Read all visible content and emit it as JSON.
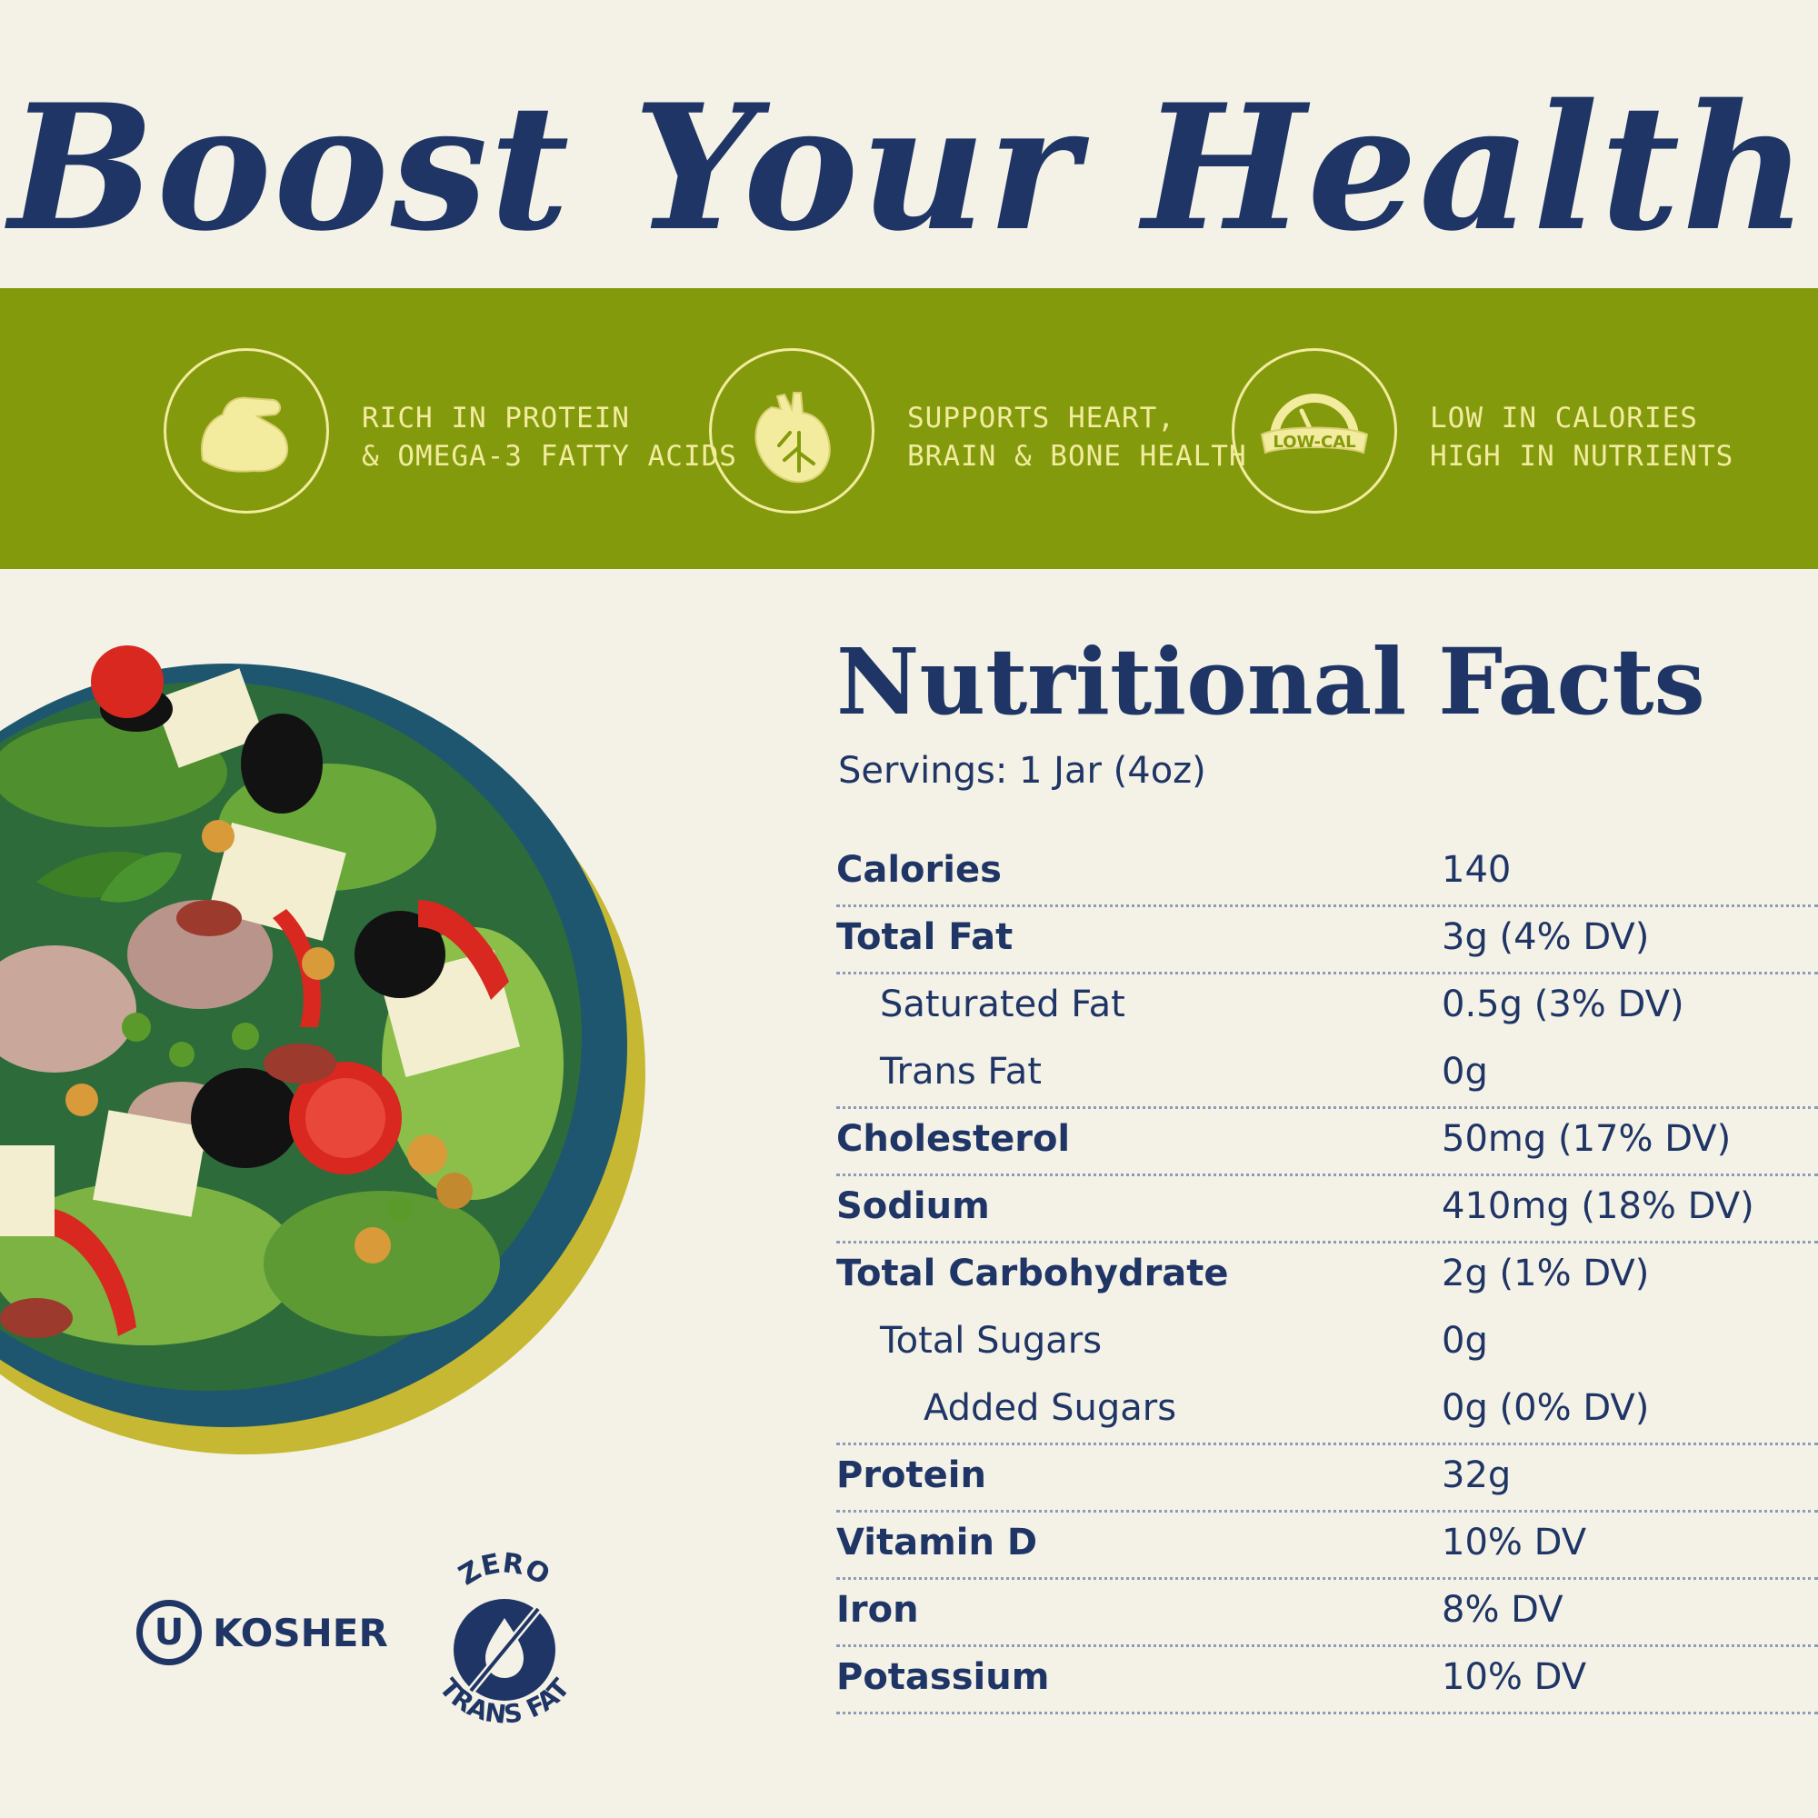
{
  "header": {
    "title": "Boost Your Health"
  },
  "benefits": [
    {
      "icon": "flexed-arm-icon",
      "line1": "RICH IN PROTEIN",
      "line2": "& OMEGA-3 FATTY ACIDS"
    },
    {
      "icon": "heart-organ-icon",
      "line1": "SUPPORTS HEART,",
      "line2": "BRAIN & BONE HEALTH"
    },
    {
      "icon": "low-cal-gauge-icon",
      "badge": "LOW-CAL",
      "line1": "LOW IN CALORIES",
      "line2": "HIGH IN NUTRIENTS"
    }
  ],
  "nutrition": {
    "title": "Nutritional Facts",
    "servings": "Servings: 1 Jar (4oz)",
    "rows": [
      {
        "label": "Calories",
        "value": "140"
      },
      {
        "label": "Total Fat",
        "value": "3g (4% DV)"
      },
      {
        "label": "Saturated Fat",
        "value": "0.5g (3% DV)"
      },
      {
        "label": "Trans Fat",
        "value": "0g"
      },
      {
        "label": "Cholesterol",
        "value": "50mg (17% DV)"
      },
      {
        "label": "Sodium",
        "value": "410mg (18% DV)"
      },
      {
        "label": "Total Carbohydrate",
        "value": "2g (1% DV)"
      },
      {
        "label": "Total Sugars",
        "value": "0g"
      },
      {
        "label": "Added Sugars",
        "value": "0g (0% DV)"
      },
      {
        "label": "Protein",
        "value": "32g"
      },
      {
        "label": "Vitamin D",
        "value": "10% DV"
      },
      {
        "label": "Iron",
        "value": "8% DV"
      },
      {
        "label": "Potassium",
        "value": "10% DV"
      }
    ]
  },
  "badges": {
    "kosher_symbol": "U",
    "kosher_label": "KOSHER",
    "transfat_top": "ZERO",
    "transfat_bottom": "TRANS FAT"
  },
  "colors": {
    "navy": "#1f3566",
    "olive_band": "#839a0c",
    "cream_text": "#f3ec9e",
    "background": "#f4f2e6"
  }
}
